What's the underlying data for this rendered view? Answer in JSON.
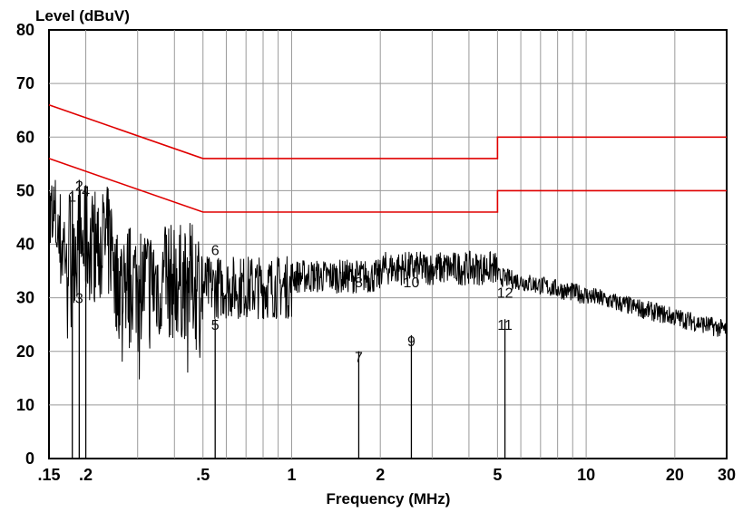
{
  "chart_data": {
    "type": "line",
    "title": "",
    "xlabel": "Frequency (MHz)",
    "ylabel": "Level (dBuV)",
    "xscale": "log",
    "xlim": [
      0.15,
      30
    ],
    "ylim": [
      0,
      80
    ],
    "grid": true,
    "x_ticks": [
      {
        "value": 0.15,
        "label": ".15"
      },
      {
        "value": 0.2,
        "label": ".2"
      },
      {
        "value": 0.5,
        "label": ".5"
      },
      {
        "value": 1,
        "label": "1"
      },
      {
        "value": 2,
        "label": "2"
      },
      {
        "value": 5,
        "label": "5"
      },
      {
        "value": 10,
        "label": "10"
      },
      {
        "value": 20,
        "label": "20"
      },
      {
        "value": 30,
        "label": "30"
      }
    ],
    "y_ticks": [
      {
        "value": 0,
        "label": "0"
      },
      {
        "value": 10,
        "label": "10"
      },
      {
        "value": 20,
        "label": "20"
      },
      {
        "value": 30,
        "label": "30"
      },
      {
        "value": 40,
        "label": "40"
      },
      {
        "value": 50,
        "label": "50"
      },
      {
        "value": 60,
        "label": "60"
      },
      {
        "value": 70,
        "label": "70"
      },
      {
        "value": 80,
        "label": "80"
      }
    ],
    "limit_lines": [
      {
        "color": "#e00000",
        "points": [
          [
            0.15,
            66
          ],
          [
            0.5,
            56
          ],
          [
            5,
            56
          ],
          [
            5,
            60
          ],
          [
            30,
            60
          ]
        ]
      },
      {
        "color": "#e00000",
        "points": [
          [
            0.15,
            56
          ],
          [
            0.5,
            46
          ],
          [
            5,
            46
          ],
          [
            5,
            50
          ],
          [
            30,
            50
          ]
        ]
      }
    ],
    "trace_color": "#000000",
    "markers": [
      {
        "label": "1",
        "x": 0.18,
        "y": 49
      },
      {
        "label": "2",
        "x": 0.19,
        "y": 51
      },
      {
        "label": "3",
        "x": 0.19,
        "y": 30
      },
      {
        "label": "4",
        "x": 0.2,
        "y": 50
      },
      {
        "label": "5",
        "x": 0.55,
        "y": 25
      },
      {
        "label": "6",
        "x": 0.55,
        "y": 39
      },
      {
        "label": "7",
        "x": 1.69,
        "y": 19
      },
      {
        "label": "8",
        "x": 1.69,
        "y": 33
      },
      {
        "label": "9",
        "x": 2.55,
        "y": 22
      },
      {
        "label": "10",
        "x": 2.55,
        "y": 33
      },
      {
        "label": "11",
        "x": 5.3,
        "y": 25
      },
      {
        "label": "12",
        "x": 5.3,
        "y": 31
      }
    ]
  }
}
